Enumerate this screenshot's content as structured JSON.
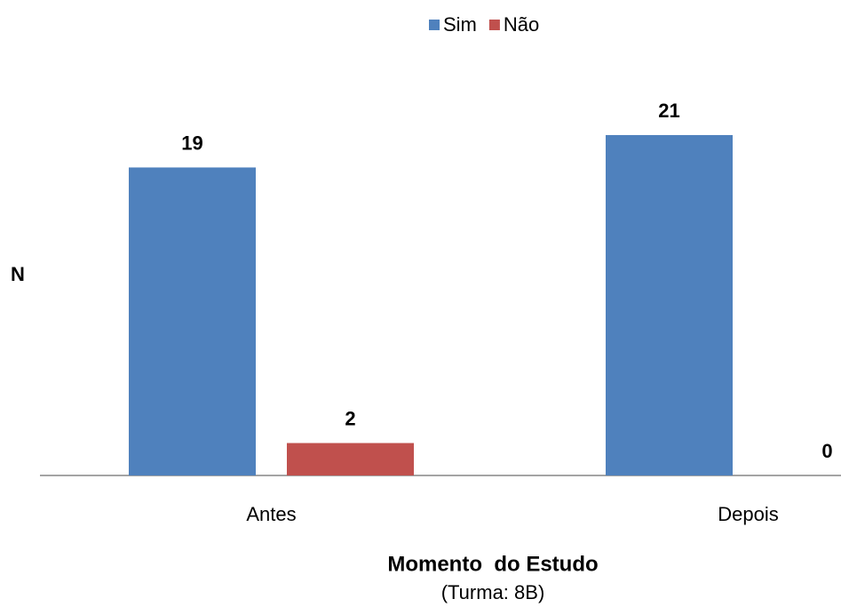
{
  "chart_data": {
    "type": "bar",
    "categories": [
      "Antes",
      "Depois"
    ],
    "series": [
      {
        "name": "Sim",
        "color": "#4f81bd",
        "values": [
          19,
          21
        ]
      },
      {
        "name": "Não",
        "color": "#c0504d",
        "values": [
          2,
          0
        ]
      }
    ],
    "ylabel": "N",
    "xlabel": "Momento  do Estudo",
    "xlabel_note": "(Turma: 8B)",
    "ylim": [
      0,
      25
    ],
    "legend": "top",
    "grid": false
  }
}
